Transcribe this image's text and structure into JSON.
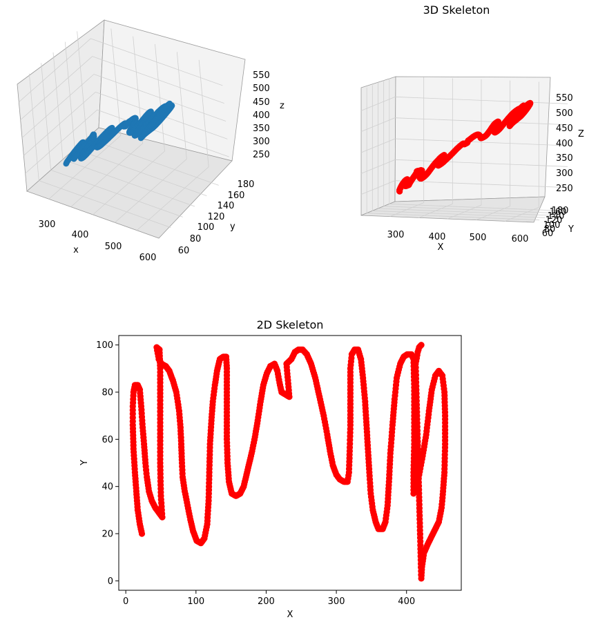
{
  "chart_data": [
    {
      "type": "scatter",
      "title": "",
      "xlabel": "x",
      "ylabel": "y",
      "zlabel": "z",
      "xticks": [
        "300",
        "400",
        "500",
        "600"
      ],
      "yticks": [
        "60",
        "80",
        "100",
        "120",
        "140",
        "160",
        "180"
      ],
      "zticks": [
        "250",
        "300",
        "350",
        "400",
        "450",
        "500",
        "550"
      ],
      "xlim": [
        215,
        625
      ],
      "ylim": [
        55,
        185
      ],
      "zlim": [
        215,
        590
      ],
      "grid": true,
      "color": "#1f77b4"
    },
    {
      "type": "scatter",
      "title": "3D Skeleton",
      "xlabel": "X",
      "ylabel": "Y",
      "zlabel": "Z",
      "xticks": [
        "300",
        "400",
        "500",
        "600"
      ],
      "yticks": [
        "60",
        "80",
        "100",
        "120",
        "140",
        "160",
        "180"
      ],
      "zticks": [
        "250",
        "300",
        "350",
        "400",
        "450",
        "500",
        "550"
      ],
      "xlim": [
        215,
        625
      ],
      "ylim": [
        55,
        185
      ],
      "zlim": [
        215,
        590
      ],
      "grid": true,
      "color": "#ff0000"
    },
    {
      "type": "scatter",
      "title": "2D Skeleton",
      "xlabel": "X",
      "ylabel": "Y",
      "xticks": [
        0,
        100,
        200,
        300,
        400
      ],
      "yticks": [
        0,
        20,
        40,
        60,
        80,
        100
      ],
      "xlim": [
        -10,
        478
      ],
      "ylim": [
        -4,
        104
      ],
      "color": "#ff0000",
      "path": [
        [
          23,
          20
        ],
        [
          20,
          24
        ],
        [
          17,
          30
        ],
        [
          15,
          38
        ],
        [
          13,
          46
        ],
        [
          11,
          56
        ],
        [
          10,
          66
        ],
        [
          10,
          74
        ],
        [
          11,
          80
        ],
        [
          13,
          83
        ],
        [
          17,
          83
        ],
        [
          20,
          81
        ],
        [
          22,
          74
        ],
        [
          24,
          65
        ],
        [
          26,
          58
        ],
        [
          28,
          50
        ],
        [
          30,
          44
        ],
        [
          33,
          38
        ],
        [
          37,
          34
        ],
        [
          42,
          31
        ],
        [
          47,
          29
        ],
        [
          52,
          27
        ],
        [
          50,
          36
        ],
        [
          49,
          50
        ],
        [
          49,
          64
        ],
        [
          49,
          78
        ],
        [
          49,
          90
        ],
        [
          48,
          98
        ],
        [
          44,
          99
        ],
        [
          47,
          94
        ],
        [
          51,
          92
        ],
        [
          57,
          91
        ],
        [
          62,
          89
        ],
        [
          67,
          85
        ],
        [
          72,
          80
        ],
        [
          76,
          72
        ],
        [
          78,
          65
        ],
        [
          79,
          58
        ],
        [
          80,
          50
        ],
        [
          81,
          44
        ],
        [
          84,
          38
        ],
        [
          88,
          32
        ],
        [
          92,
          26
        ],
        [
          96,
          21
        ],
        [
          101,
          17
        ],
        [
          107,
          16
        ],
        [
          112,
          18
        ],
        [
          116,
          24
        ],
        [
          118,
          34
        ],
        [
          119,
          46
        ],
        [
          120,
          58
        ],
        [
          122,
          68
        ],
        [
          124,
          76
        ],
        [
          127,
          83
        ],
        [
          130,
          89
        ],
        [
          134,
          94
        ],
        [
          139,
          95
        ],
        [
          143,
          95
        ],
        [
          144,
          90
        ],
        [
          144,
          80
        ],
        [
          144,
          70
        ],
        [
          144,
          60
        ],
        [
          145,
          50
        ],
        [
          147,
          42
        ],
        [
          151,
          37
        ],
        [
          157,
          36
        ],
        [
          163,
          37
        ],
        [
          168,
          40
        ],
        [
          172,
          45
        ],
        [
          176,
          50
        ],
        [
          180,
          55
        ],
        [
          184,
          61
        ],
        [
          188,
          68
        ],
        [
          192,
          76
        ],
        [
          196,
          83
        ],
        [
          201,
          88
        ],
        [
          206,
          91
        ],
        [
          212,
          92
        ],
        [
          216,
          89
        ],
        [
          219,
          84
        ],
        [
          222,
          80
        ],
        [
          233,
          78
        ],
        [
          229,
          92
        ],
        [
          236,
          94
        ],
        [
          241,
          97
        ],
        [
          246,
          98
        ],
        [
          252,
          98
        ],
        [
          258,
          96
        ],
        [
          264,
          92
        ],
        [
          270,
          86
        ],
        [
          276,
          78
        ],
        [
          282,
          70
        ],
        [
          287,
          62
        ],
        [
          291,
          55
        ],
        [
          295,
          49
        ],
        [
          300,
          45
        ],
        [
          305,
          43
        ],
        [
          311,
          42
        ],
        [
          316,
          42
        ],
        [
          318,
          46
        ],
        [
          319,
          55
        ],
        [
          320,
          66
        ],
        [
          320,
          78
        ],
        [
          320,
          90
        ],
        [
          322,
          96
        ],
        [
          326,
          98
        ],
        [
          331,
          98
        ],
        [
          335,
          94
        ],
        [
          338,
          86
        ],
        [
          341,
          76
        ],
        [
          343,
          66
        ],
        [
          345,
          56
        ],
        [
          347,
          46
        ],
        [
          349,
          37
        ],
        [
          352,
          30
        ],
        [
          356,
          25
        ],
        [
          360,
          22
        ],
        [
          366,
          22
        ],
        [
          370,
          25
        ],
        [
          373,
          32
        ],
        [
          375,
          42
        ],
        [
          377,
          54
        ],
        [
          380,
          66
        ],
        [
          383,
          77
        ],
        [
          386,
          86
        ],
        [
          391,
          92
        ],
        [
          396,
          95
        ],
        [
          401,
          96
        ],
        [
          407,
          96
        ],
        [
          410,
          94
        ],
        [
          411,
          82
        ],
        [
          411,
          70
        ],
        [
          411,
          58
        ],
        [
          410,
          46
        ],
        [
          410,
          37
        ],
        [
          413,
          39
        ],
        [
          418,
          45
        ],
        [
          423,
          53
        ],
        [
          428,
          62
        ],
        [
          432,
          72
        ],
        [
          436,
          81
        ],
        [
          441,
          87
        ],
        [
          446,
          89
        ],
        [
          451,
          87
        ],
        [
          454,
          80
        ],
        [
          455,
          70
        ],
        [
          455,
          58
        ],
        [
          454,
          46
        ],
        [
          452,
          38
        ],
        [
          450,
          31
        ],
        [
          446,
          25
        ],
        [
          441,
          22
        ],
        [
          436,
          19
        ],
        [
          431,
          16
        ],
        [
          425,
          12
        ],
        [
          422,
          6
        ],
        [
          421,
          1
        ],
        [
          413,
          92
        ],
        [
          416,
          97
        ],
        [
          418,
          99
        ],
        [
          421,
          100
        ]
      ]
    }
  ]
}
